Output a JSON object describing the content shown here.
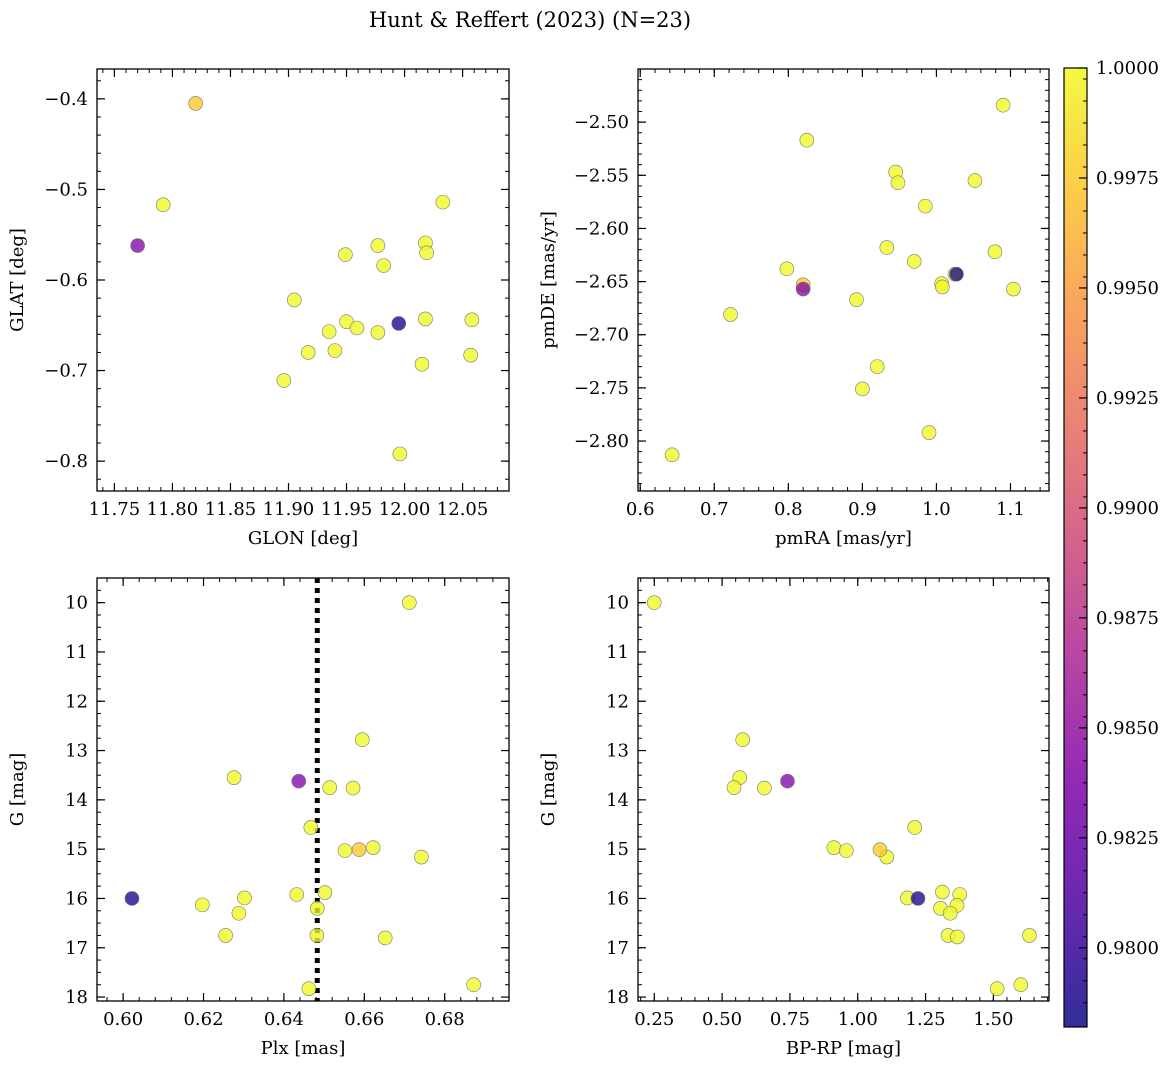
{
  "figure": {
    "title": "Hunt & Reffert (2023) (N=23)"
  },
  "colorbar": {
    "colormap": "plasma",
    "range": [
      0.9782,
      1.0
    ],
    "ticks": [
      0.98,
      0.9825,
      0.985,
      0.9875,
      0.99,
      0.9925,
      0.995,
      0.9975,
      1.0
    ],
    "tick_labels": [
      "0.9800",
      "0.9825",
      "0.9850",
      "0.9875",
      "0.9900",
      "0.9925",
      "0.9950",
      "0.9975",
      "1.0000"
    ]
  },
  "chart_data": [
    {
      "type": "scatter",
      "xlabel": "GLON [deg]",
      "ylabel": "GLAT [deg]",
      "xlim": [
        11.735,
        12.09
      ],
      "ylim": [
        -0.833,
        -0.367
      ],
      "xticks": [
        11.75,
        11.8,
        11.85,
        11.9,
        11.95,
        12.0,
        12.05
      ],
      "xtick_labels": [
        "11.75",
        "11.80",
        "11.85",
        "11.90",
        "11.95",
        "12.00",
        "12.05"
      ],
      "yticks": [
        -0.8,
        -0.7,
        -0.6,
        -0.5,
        -0.4
      ],
      "ytick_labels": [
        "−0.8",
        "−0.7",
        "−0.6",
        "−0.5",
        "−0.4"
      ],
      "points": [
        {
          "x": 11.77,
          "y": -0.562,
          "c": 0.984
        },
        {
          "x": 11.792,
          "y": -0.517,
          "c": 1.0
        },
        {
          "x": 11.82,
          "y": -0.405,
          "c": 0.9975
        },
        {
          "x": 11.896,
          "y": -0.711,
          "c": 1.0
        },
        {
          "x": 11.905,
          "y": -0.622,
          "c": 1.0
        },
        {
          "x": 11.917,
          "y": -0.68,
          "c": 1.0
        },
        {
          "x": 11.935,
          "y": -0.657,
          "c": 1.0
        },
        {
          "x": 11.94,
          "y": -0.678,
          "c": 1.0
        },
        {
          "x": 11.949,
          "y": -0.572,
          "c": 1.0
        },
        {
          "x": 11.95,
          "y": -0.646,
          "c": 1.0
        },
        {
          "x": 11.959,
          "y": -0.653,
          "c": 1.0
        },
        {
          "x": 11.977,
          "y": -0.562,
          "c": 1.0
        },
        {
          "x": 11.977,
          "y": -0.658,
          "c": 1.0
        },
        {
          "x": 11.982,
          "y": -0.584,
          "c": 1.0
        },
        {
          "x": 11.995,
          "y": -0.648,
          "c": 0.9785
        },
        {
          "x": 11.996,
          "y": -0.792,
          "c": 1.0
        },
        {
          "x": 12.015,
          "y": -0.693,
          "c": 1.0
        },
        {
          "x": 12.018,
          "y": -0.559,
          "c": 1.0
        },
        {
          "x": 12.018,
          "y": -0.643,
          "c": 1.0
        },
        {
          "x": 12.019,
          "y": -0.57,
          "c": 1.0
        },
        {
          "x": 12.033,
          "y": -0.514,
          "c": 1.0
        },
        {
          "x": 12.057,
          "y": -0.683,
          "c": 1.0
        },
        {
          "x": 12.058,
          "y": -0.644,
          "c": 1.0
        }
      ]
    },
    {
      "type": "scatter",
      "xlabel": "pmRA [mas/yr]",
      "ylabel": "pmDE [mas/yr]",
      "xlim": [
        0.597,
        1.152
      ],
      "ylim": [
        -2.847,
        -2.45
      ],
      "xticks": [
        0.6,
        0.7,
        0.8,
        0.9,
        1.0,
        1.1
      ],
      "xtick_labels": [
        "0.6",
        "0.7",
        "0.8",
        "0.9",
        "1.0",
        "1.1"
      ],
      "yticks": [
        -2.8,
        -2.75,
        -2.7,
        -2.65,
        -2.6,
        -2.55,
        -2.5
      ],
      "ytick_labels": [
        "−2.80",
        "−2.75",
        "−2.70",
        "−2.65",
        "−2.60",
        "−2.55",
        "−2.50"
      ],
      "points": [
        {
          "x": 0.643,
          "y": -2.813,
          "c": 1.0
        },
        {
          "x": 0.722,
          "y": -2.681,
          "c": 1.0
        },
        {
          "x": 0.798,
          "y": -2.638,
          "c": 1.0
        },
        {
          "x": 0.82,
          "y": -2.657,
          "c": 0.984
        },
        {
          "x": 0.82,
          "y": -2.653,
          "c": 0.9975
        },
        {
          "x": 0.825,
          "y": -2.517,
          "c": 1.0
        },
        {
          "x": 0.892,
          "y": -2.667,
          "c": 1.0
        },
        {
          "x": 0.9,
          "y": -2.751,
          "c": 1.0
        },
        {
          "x": 0.92,
          "y": -2.73,
          "c": 1.0
        },
        {
          "x": 0.933,
          "y": -2.618,
          "c": 1.0
        },
        {
          "x": 0.945,
          "y": -2.547,
          "c": 1.0
        },
        {
          "x": 0.948,
          "y": -2.557,
          "c": 1.0
        },
        {
          "x": 0.97,
          "y": -2.631,
          "c": 1.0
        },
        {
          "x": 0.985,
          "y": -2.579,
          "c": 1.0
        },
        {
          "x": 0.99,
          "y": -2.792,
          "c": 1.0
        },
        {
          "x": 1.007,
          "y": -2.652,
          "c": 1.0
        },
        {
          "x": 1.008,
          "y": -2.655,
          "c": 1.0
        },
        {
          "x": 1.027,
          "y": -2.643,
          "c": 0.9785
        },
        {
          "x": 1.025,
          "y": -2.643,
          "c": 1.0
        },
        {
          "x": 1.052,
          "y": -2.555,
          "c": 1.0
        },
        {
          "x": 1.079,
          "y": -2.622,
          "c": 1.0
        },
        {
          "x": 1.09,
          "y": -2.484,
          "c": 1.0
        },
        {
          "x": 1.104,
          "y": -2.657,
          "c": 1.0
        }
      ]
    },
    {
      "type": "scatter",
      "xlabel": "Plx [mas]",
      "ylabel": "G [mag]",
      "xlim": [
        0.5935,
        0.696
      ],
      "ylim": [
        18.08,
        9.5
      ],
      "y_inverted": true,
      "xticks": [
        0.6,
        0.62,
        0.64,
        0.66,
        0.68
      ],
      "xtick_labels": [
        "0.60",
        "0.62",
        "0.64",
        "0.66",
        "0.68"
      ],
      "yticks": [
        10,
        11,
        12,
        13,
        14,
        15,
        16,
        17,
        18
      ],
      "ytick_labels": [
        "10",
        "11",
        "12",
        "13",
        "14",
        "15",
        "16",
        "17",
        "18"
      ],
      "reference_line": {
        "x": 0.6483,
        "style": "dotted"
      },
      "points": [
        {
          "x": 0.6712,
          "y": 10.0,
          "c": 1.0
        },
        {
          "x": 0.6595,
          "y": 12.78,
          "c": 1.0
        },
        {
          "x": 0.6276,
          "y": 13.55,
          "c": 1.0
        },
        {
          "x": 0.6437,
          "y": 13.62,
          "c": 0.984
        },
        {
          "x": 0.6514,
          "y": 13.75,
          "c": 1.0
        },
        {
          "x": 0.6572,
          "y": 13.76,
          "c": 1.0
        },
        {
          "x": 0.6467,
          "y": 14.56,
          "c": 1.0
        },
        {
          "x": 0.6622,
          "y": 14.97,
          "c": 1.0
        },
        {
          "x": 0.6587,
          "y": 15.01,
          "c": 0.9975
        },
        {
          "x": 0.6552,
          "y": 15.03,
          "c": 1.0
        },
        {
          "x": 0.6742,
          "y": 15.16,
          "c": 1.0
        },
        {
          "x": 0.6022,
          "y": 16.0,
          "c": 0.9785
        },
        {
          "x": 0.6302,
          "y": 15.99,
          "c": 1.0
        },
        {
          "x": 0.6432,
          "y": 15.92,
          "c": 1.0
        },
        {
          "x": 0.6502,
          "y": 15.88,
          "c": 1.0
        },
        {
          "x": 0.6197,
          "y": 16.13,
          "c": 1.0
        },
        {
          "x": 0.6483,
          "y": 16.2,
          "c": 1.0
        },
        {
          "x": 0.6288,
          "y": 16.3,
          "c": 1.0
        },
        {
          "x": 0.6255,
          "y": 16.75,
          "c": 1.0
        },
        {
          "x": 0.6482,
          "y": 16.75,
          "c": 1.0
        },
        {
          "x": 0.6652,
          "y": 16.8,
          "c": 1.0
        },
        {
          "x": 0.6462,
          "y": 17.83,
          "c": 1.0
        },
        {
          "x": 0.6872,
          "y": 17.75,
          "c": 1.0
        }
      ]
    },
    {
      "type": "scatter",
      "xlabel": "BP-RP [mag]",
      "ylabel": "G [mag]",
      "xlim": [
        0.19,
        1.705
      ],
      "ylim": [
        18.08,
        9.5
      ],
      "y_inverted": true,
      "xticks": [
        0.25,
        0.5,
        0.75,
        1.0,
        1.25,
        1.5
      ],
      "xtick_labels": [
        "0.25",
        "0.50",
        "0.75",
        "1.00",
        "1.25",
        "1.50"
      ],
      "yticks": [
        10,
        11,
        12,
        13,
        14,
        15,
        16,
        17,
        18
      ],
      "ytick_labels": [
        "10",
        "11",
        "12",
        "13",
        "14",
        "15",
        "16",
        "17",
        "18"
      ],
      "points": [
        {
          "x": 0.25,
          "y": 10.0,
          "c": 1.0
        },
        {
          "x": 0.576,
          "y": 12.78,
          "c": 1.0
        },
        {
          "x": 0.565,
          "y": 13.55,
          "c": 1.0
        },
        {
          "x": 0.741,
          "y": 13.62,
          "c": 0.984
        },
        {
          "x": 0.544,
          "y": 13.75,
          "c": 1.0
        },
        {
          "x": 0.656,
          "y": 13.76,
          "c": 1.0
        },
        {
          "x": 1.21,
          "y": 14.56,
          "c": 1.0
        },
        {
          "x": 0.912,
          "y": 14.97,
          "c": 1.0
        },
        {
          "x": 1.082,
          "y": 15.01,
          "c": 0.9975
        },
        {
          "x": 0.958,
          "y": 15.03,
          "c": 1.0
        },
        {
          "x": 1.107,
          "y": 15.16,
          "c": 1.0
        },
        {
          "x": 1.222,
          "y": 16.0,
          "c": 0.9785
        },
        {
          "x": 1.183,
          "y": 15.99,
          "c": 1.0
        },
        {
          "x": 1.312,
          "y": 15.87,
          "c": 1.0
        },
        {
          "x": 1.376,
          "y": 15.92,
          "c": 1.0
        },
        {
          "x": 1.366,
          "y": 16.14,
          "c": 1.0
        },
        {
          "x": 1.305,
          "y": 16.2,
          "c": 1.0
        },
        {
          "x": 1.341,
          "y": 16.3,
          "c": 1.0
        },
        {
          "x": 1.333,
          "y": 16.75,
          "c": 1.0
        },
        {
          "x": 1.367,
          "y": 16.78,
          "c": 1.0
        },
        {
          "x": 1.633,
          "y": 16.75,
          "c": 1.0
        },
        {
          "x": 1.514,
          "y": 17.83,
          "c": 1.0
        },
        {
          "x": 1.601,
          "y": 17.75,
          "c": 1.0
        }
      ]
    }
  ]
}
